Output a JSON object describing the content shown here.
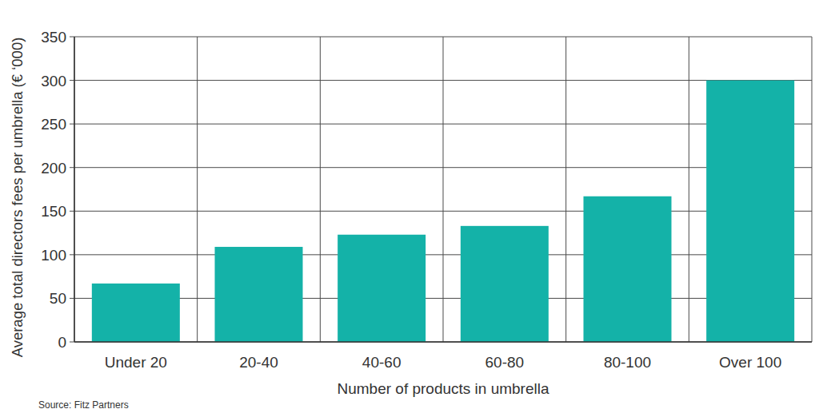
{
  "chart_data": {
    "type": "bar",
    "y_label": "Average total directors fees per umbrella (€ ‘000)",
    "x_label": "Number of products in umbrella",
    "source": "Source: Fitz Partners",
    "categories": [
      "Under 20",
      "20-40",
      "40-60",
      "60-80",
      "80-100",
      "Over 100"
    ],
    "values": [
      67,
      109,
      123,
      133,
      167,
      300
    ],
    "color": "#14b2a8",
    "ylim": [
      0,
      350
    ],
    "yticks": [
      0,
      50,
      100,
      150,
      200,
      250,
      300,
      350
    ],
    "grid": true
  }
}
